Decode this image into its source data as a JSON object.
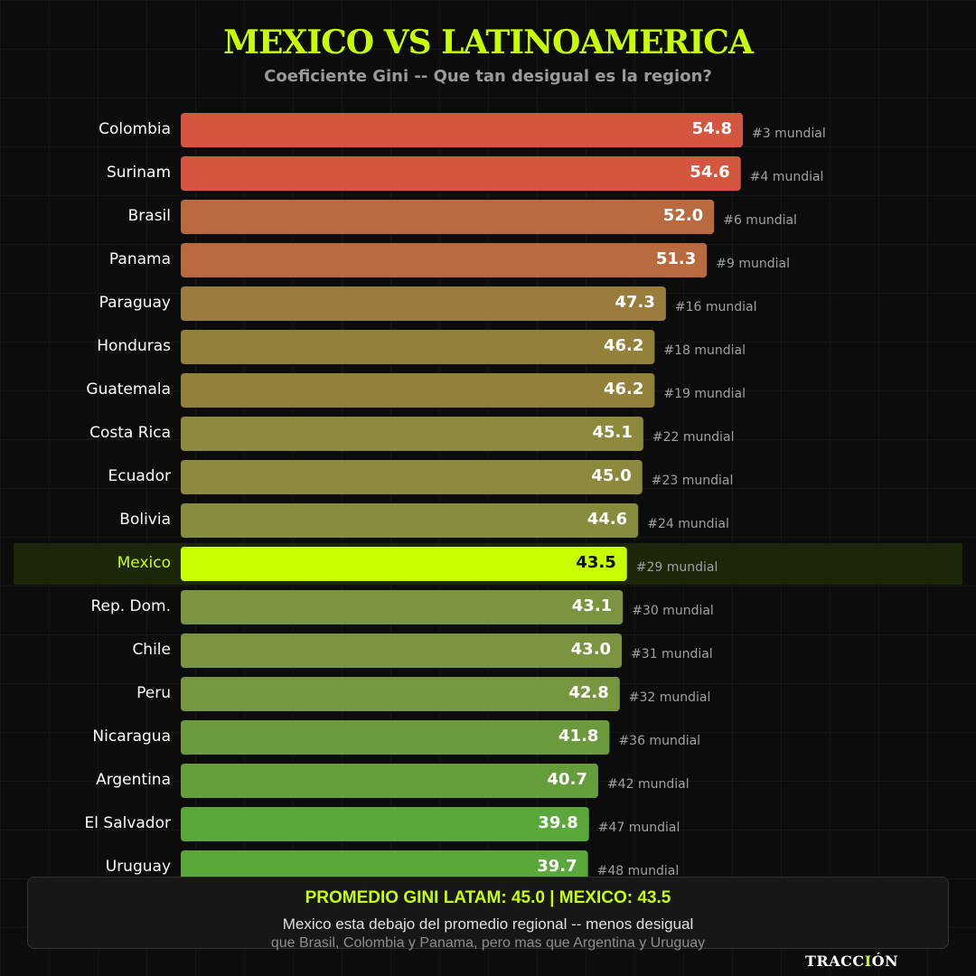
{
  "title": "MEXICO VS LATINOAMERICA",
  "subtitle": "Coeficiente Gini -- Que tan desigual es la region?",
  "chart_data": {
    "type": "bar",
    "orientation": "horizontal",
    "categories": [
      "Colombia",
      "Surinam",
      "Brasil",
      "Panama",
      "Paraguay",
      "Honduras",
      "Guatemala",
      "Costa Rica",
      "Ecuador",
      "Bolivia",
      "Mexico",
      "Rep. Dom.",
      "Chile",
      "Peru",
      "Nicaragua",
      "Argentina",
      "El Salvador",
      "Uruguay"
    ],
    "values": [
      54.8,
      54.6,
      52.0,
      51.3,
      47.3,
      46.2,
      46.2,
      45.1,
      45.0,
      44.6,
      43.5,
      43.1,
      43.0,
      42.8,
      41.8,
      40.7,
      39.8,
      39.7
    ],
    "value_labels": [
      "54.8",
      "54.6",
      "52.0",
      "51.3",
      "47.3",
      "46.2",
      "46.2",
      "45.1",
      "45.0",
      "44.6",
      "43.5",
      "43.1",
      "43.0",
      "42.8",
      "41.8",
      "40.7",
      "39.8",
      "39.7"
    ],
    "rank_labels": [
      "#3 mundial",
      "#4 mundial",
      "#6 mundial",
      "#9 mundial",
      "#16 mundial",
      "#18 mundial",
      "#19 mundial",
      "#22 mundial",
      "#23 mundial",
      "#24 mundial",
      "#29 mundial",
      "#30 mundial",
      "#31 mundial",
      "#32 mundial",
      "#36 mundial",
      "#42 mundial",
      "#47 mundial",
      "#48 mundial"
    ],
    "colors": [
      "#d4563f",
      "#d4563f",
      "#b96a3f",
      "#b96a3f",
      "#9a7c3c",
      "#938139",
      "#938139",
      "#8c883c",
      "#8c883c",
      "#868c3c",
      "#c8ff00",
      "#7a9440",
      "#7a9440",
      "#76963f",
      "#6b9a3d",
      "#669d3b",
      "#5aa73a",
      "#5aa73a"
    ],
    "highlight": "Mexico",
    "highlight_color": "#c8ff00",
    "xlim": [
      0,
      54.8
    ],
    "grid": false,
    "legend": "none"
  },
  "summary": {
    "headline": "PROMEDIO GINI LATAM: 45.0  |  MEXICO: 43.5",
    "line1": "Mexico esta debajo del promedio regional -- menos desigual",
    "line2": "que Brasil, Colombia y Panama, pero mas que Argentina y Uruguay"
  },
  "brand": {
    "prefix": "TRACC",
    "accent": "I",
    "suffix": "ÓN"
  }
}
